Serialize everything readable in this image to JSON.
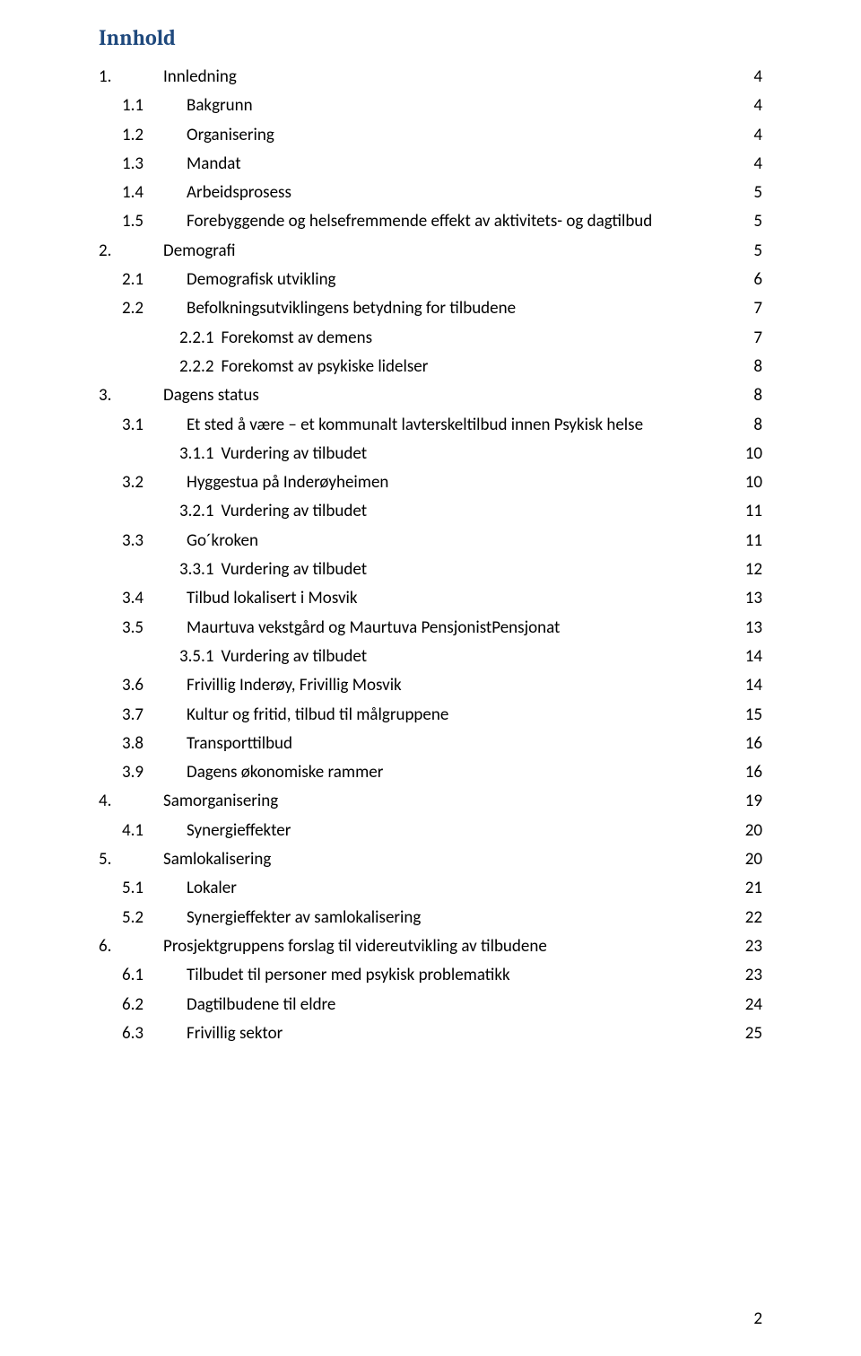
{
  "title": "Innhold",
  "title_color": "#1f497d",
  "page_number": "2",
  "font": {
    "body_family": "Calibri",
    "title_family": "Cambria",
    "body_size_pt": 14,
    "title_size_pt": 18
  },
  "toc": [
    {
      "num": "1.",
      "text": "Innledning",
      "page": "4",
      "level": 0
    },
    {
      "num": "1.1",
      "text": "Bakgrunn",
      "page": "4",
      "level": 1
    },
    {
      "num": "1.2",
      "text": "Organisering",
      "page": "4",
      "level": 1
    },
    {
      "num": "1.3",
      "text": "Mandat",
      "page": "4",
      "level": 1
    },
    {
      "num": "1.4",
      "text": "Arbeidsprosess",
      "page": "5",
      "level": 1
    },
    {
      "num": "1.5",
      "text": "Forebyggende og helsefremmende effekt av aktivitets- og dagtilbud",
      "page": "5",
      "level": 1
    },
    {
      "num": "2.",
      "text": "Demografi",
      "page": "5",
      "level": 0
    },
    {
      "num": "2.1",
      "text": "Demografisk utvikling",
      "page": "6",
      "level": 1
    },
    {
      "num": "2.2",
      "text": "Befolkningsutviklingens betydning for tilbudene",
      "page": "7",
      "level": 1
    },
    {
      "num": "2.2.1",
      "text": "Forekomst av demens",
      "page": "7",
      "level": 2
    },
    {
      "num": "2.2.2",
      "text": "Forekomst av psykiske lidelser",
      "page": "8",
      "level": 2
    },
    {
      "num": "3.",
      "text": "Dagens status",
      "page": "8",
      "level": 0
    },
    {
      "num": "3.1",
      "text": "Et sted å være – et kommunalt lavterskeltilbud innen Psykisk helse",
      "page": "8",
      "level": 1
    },
    {
      "num": "3.1.1",
      "text": "Vurdering av tilbudet",
      "page": "10",
      "level": 2
    },
    {
      "num": "3.2",
      "text": "Hyggestua på Inderøyheimen",
      "page": "10",
      "level": 1
    },
    {
      "num": "3.2.1",
      "text": "Vurdering av tilbudet",
      "page": "11",
      "level": 2
    },
    {
      "num": "3.3",
      "text": "Go´kroken",
      "page": "11",
      "level": 1
    },
    {
      "num": "3.3.1",
      "text": "Vurdering av tilbudet",
      "page": "12",
      "level": 2
    },
    {
      "num": "3.4",
      "text": "Tilbud lokalisert i Mosvik",
      "page": "13",
      "level": 1
    },
    {
      "num": "3.5",
      "text": "Maurtuva vekstgård og Maurtuva PensjonistPensjonat",
      "page": "13",
      "level": 1
    },
    {
      "num": "3.5.1",
      "text": "Vurdering av tilbudet",
      "page": "14",
      "level": 2
    },
    {
      "num": "3.6",
      "text": "Frivillig Inderøy, Frivillig Mosvik",
      "page": "14",
      "level": 1
    },
    {
      "num": "3.7",
      "text": "Kultur og fritid, tilbud til målgruppene",
      "page": "15",
      "level": 1
    },
    {
      "num": "3.8",
      "text": "Transporttilbud",
      "page": "16",
      "level": 1
    },
    {
      "num": "3.9",
      "text": "Dagens økonomiske rammer",
      "page": "16",
      "level": 1
    },
    {
      "num": "4.",
      "text": "Samorganisering",
      "page": "19",
      "level": 0
    },
    {
      "num": "4.1",
      "text": "Synergieffekter",
      "page": "20",
      "level": 1
    },
    {
      "num": "5.",
      "text": "Samlokalisering",
      "page": "20",
      "level": 0
    },
    {
      "num": "5.1",
      "text": "Lokaler",
      "page": "21",
      "level": 1
    },
    {
      "num": "5.2",
      "text": "Synergieffekter av samlokalisering",
      "page": "22",
      "level": 1
    },
    {
      "num": "6.",
      "text": "Prosjektgruppens forslag til videreutvikling av tilbudene",
      "page": "23",
      "level": 0
    },
    {
      "num": "6.1",
      "text": "Tilbudet til personer med psykisk problematikk",
      "page": "23",
      "level": 1
    },
    {
      "num": "6.2",
      "text": "Dagtilbudene til eldre",
      "page": "24",
      "level": 1
    },
    {
      "num": "6.3",
      "text": "Frivillig sektor",
      "page": "25",
      "level": 1
    }
  ]
}
